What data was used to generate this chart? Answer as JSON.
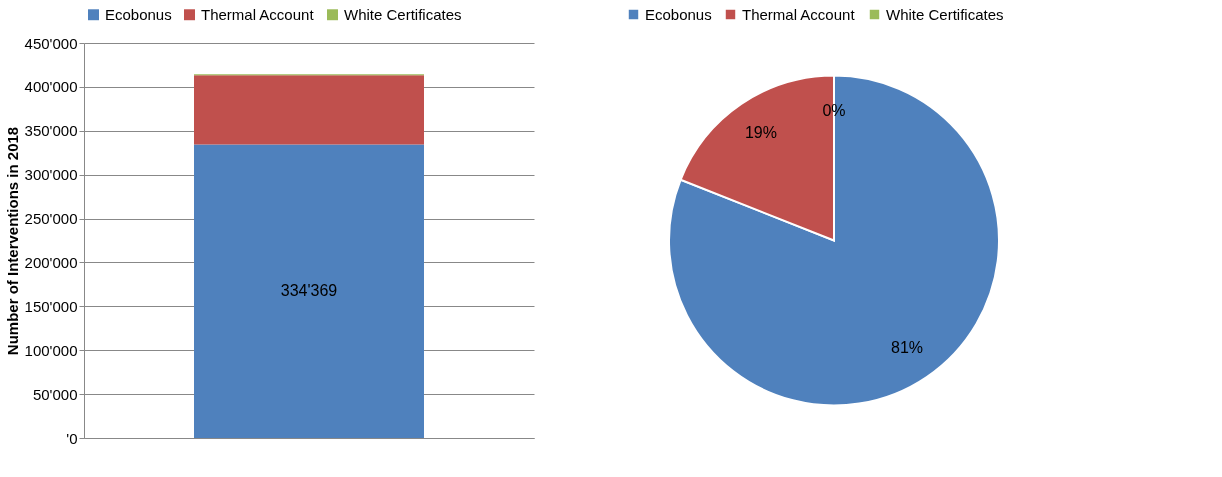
{
  "chart_data": [
    {
      "type": "bar",
      "stacked": true,
      "categories": [
        null
      ],
      "ylabel": "Number of Interventions in 2018",
      "ylim": [
        0,
        450000
      ],
      "yticks": [
        {
          "value": 0,
          "label": "'0"
        },
        {
          "value": 50000,
          "label": "50'000"
        },
        {
          "value": 100000,
          "label": "100'000"
        },
        {
          "value": 150000,
          "label": "150'000"
        },
        {
          "value": 200000,
          "label": "200'000"
        },
        {
          "value": 250000,
          "label": "250'000"
        },
        {
          "value": 300000,
          "label": "300'000"
        },
        {
          "value": 350000,
          "label": "350'000"
        },
        {
          "value": 400000,
          "label": "400'000"
        },
        {
          "value": 450000,
          "label": "450'000"
        }
      ],
      "grid": "y",
      "legend": "top",
      "series": [
        {
          "name": "Ecobonus",
          "color": "#4f81bd",
          "values": [
            334369
          ],
          "value_labels": [
            "334'369"
          ]
        },
        {
          "name": "Thermal Account",
          "color": "#c0504d",
          "values": [
            79000
          ]
        },
        {
          "name": "White Certificates",
          "color": "#9bbb59",
          "values": [
            1000
          ]
        }
      ]
    },
    {
      "type": "pie",
      "legend": "top",
      "categories": [
        "Ecobonus",
        "Thermal Account",
        "White Certificates"
      ],
      "values": [
        81,
        19,
        0
      ],
      "colors": [
        "#4f81bd",
        "#c0504d",
        "#9bbb59"
      ],
      "value_labels": [
        "81%",
        "19%",
        "0%"
      ]
    }
  ]
}
